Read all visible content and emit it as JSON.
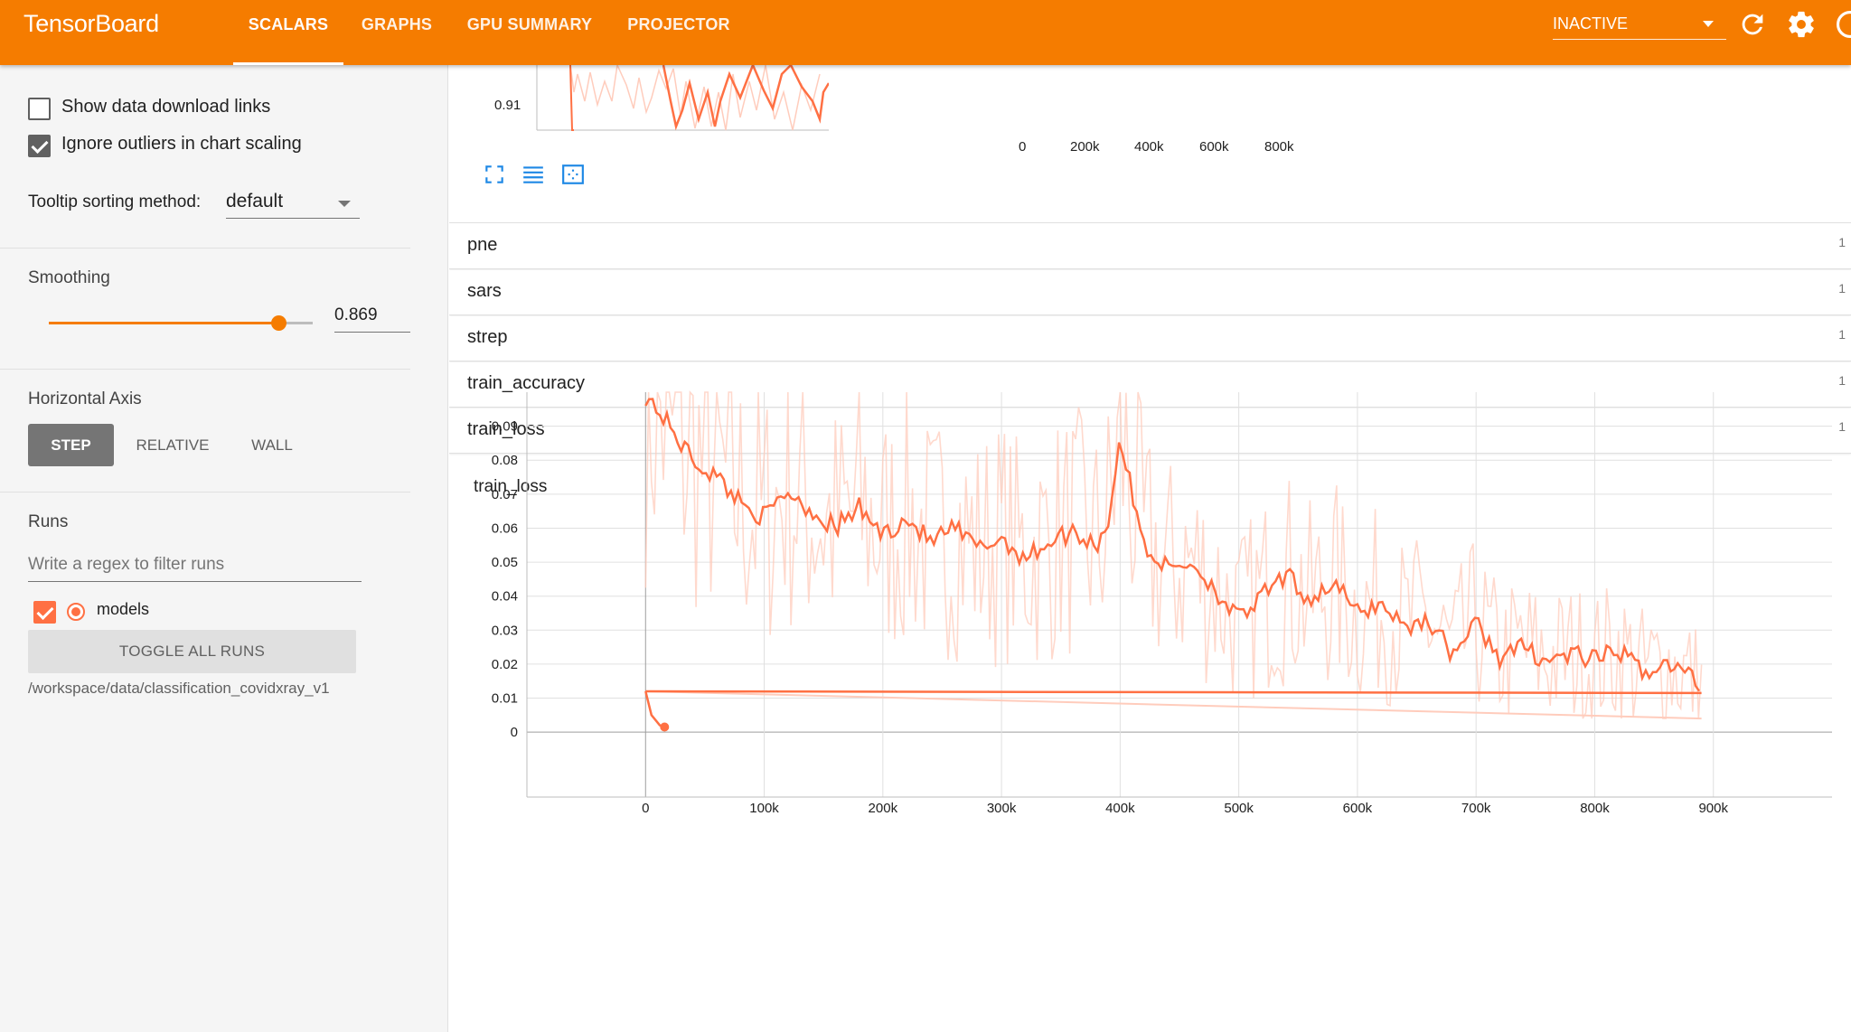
{
  "app": {
    "title": "TensorBoard"
  },
  "header": {
    "tabs": [
      {
        "label": "SCALARS",
        "active": true
      },
      {
        "label": "GRAPHS",
        "active": false
      },
      {
        "label": "GPU SUMMARY",
        "active": false
      },
      {
        "label": "PROJECTOR",
        "active": false
      }
    ],
    "status_select": "INACTIVE",
    "icons": [
      "refresh-icon",
      "settings-icon",
      "help-icon"
    ]
  },
  "sidebar": {
    "show_download_links": {
      "label": "Show data download links",
      "checked": false
    },
    "ignore_outliers": {
      "label": "Ignore outliers in chart scaling",
      "checked": true
    },
    "tooltip_sorting": {
      "label": "Tooltip sorting method:",
      "value": "default"
    },
    "smoothing": {
      "label": "Smoothing",
      "value": "0.869",
      "fraction": 0.869
    },
    "horizontal_axis": {
      "label": "Horizontal Axis",
      "options": [
        "STEP",
        "RELATIVE",
        "WALL"
      ],
      "selected": "STEP"
    },
    "runs": {
      "label": "Runs",
      "filter_placeholder": "Write a regex to filter runs",
      "items": [
        {
          "name": "models",
          "checked": true
        }
      ],
      "toggle_all_label": "TOGGLE ALL RUNS",
      "logdir": "/workspace/data/classification_covidxray_v1"
    }
  },
  "main": {
    "top_chart": {
      "ytick": "0.91",
      "xticks": [
        "0",
        "200k",
        "400k",
        "600k",
        "800k"
      ]
    },
    "categories": [
      {
        "name": "pne",
        "count": "1"
      },
      {
        "name": "sars",
        "count": "1"
      },
      {
        "name": "strep",
        "count": "1"
      },
      {
        "name": "train_accuracy",
        "count": "1"
      },
      {
        "name": "train_loss",
        "count": "1"
      }
    ]
  },
  "chart_data": {
    "type": "line",
    "title": "train_loss",
    "xlabel": "",
    "ylabel": "",
    "xlim": [
      -100000,
      1000000
    ],
    "ylim": [
      -0.009,
      0.1
    ],
    "x_ticks": [
      "0",
      "100k",
      "200k",
      "300k",
      "400k",
      "500k",
      "600k",
      "700k",
      "800k",
      "900k"
    ],
    "y_ticks": [
      "0",
      "0.01",
      "0.02",
      "0.03",
      "0.04",
      "0.05",
      "0.06",
      "0.07",
      "0.08",
      "0.09"
    ],
    "grid": true,
    "colors": {
      "smoothed": "#ff7043",
      "raw": "#ffccbc"
    },
    "series": [
      {
        "name": "models",
        "smoothed": true,
        "x": [
          0,
          10000,
          20000,
          40000,
          60000,
          80000,
          100000,
          120000,
          140000,
          160000,
          180000,
          200000,
          220000,
          240000,
          260000,
          280000,
          300000,
          320000,
          340000,
          360000,
          380000,
          390000,
          400000,
          410000,
          420000,
          440000,
          460000,
          480000,
          500000,
          520000,
          540000,
          560000,
          580000,
          600000,
          620000,
          640000,
          660000,
          680000,
          700000,
          720000,
          740000,
          760000,
          780000,
          800000,
          820000,
          840000,
          860000,
          880000,
          890000
        ],
        "y": [
          0.099,
          0.095,
          0.09,
          0.08,
          0.075,
          0.068,
          0.063,
          0.071,
          0.065,
          0.06,
          0.066,
          0.058,
          0.063,
          0.056,
          0.06,
          0.054,
          0.057,
          0.051,
          0.056,
          0.059,
          0.055,
          0.062,
          0.087,
          0.07,
          0.055,
          0.048,
          0.05,
          0.042,
          0.033,
          0.04,
          0.046,
          0.039,
          0.044,
          0.035,
          0.038,
          0.031,
          0.033,
          0.023,
          0.032,
          0.022,
          0.025,
          0.021,
          0.023,
          0.021,
          0.024,
          0.018,
          0.02,
          0.017,
          0.013
        ]
      }
    ],
    "extra_lines": [
      {
        "x": [
          0,
          890000
        ],
        "y": [
          0.012,
          0.0115
        ]
      },
      {
        "x": [
          0,
          5000,
          12000,
          16000
        ],
        "y": [
          0.012,
          0.005,
          0.002,
          0.0015
        ]
      }
    ]
  }
}
